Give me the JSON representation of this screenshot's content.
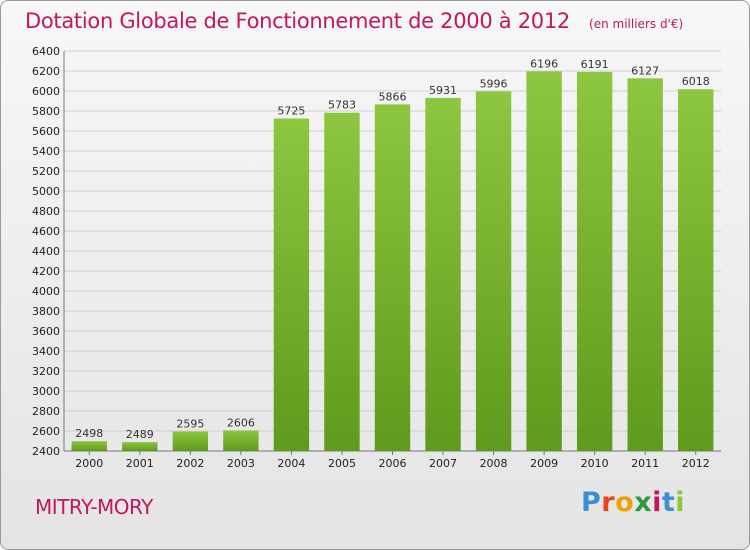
{
  "chart_data": {
    "type": "bar",
    "title": "Dotation Globale de Fonctionnement de 2000 à 2012",
    "subtitle": "(en milliers d'€)",
    "categories": [
      "2000",
      "2001",
      "2002",
      "2003",
      "2004",
      "2005",
      "2006",
      "2007",
      "2008",
      "2009",
      "2010",
      "2011",
      "2012"
    ],
    "values": [
      2498,
      2489,
      2595,
      2606,
      5725,
      5783,
      5866,
      5931,
      5996,
      6196,
      6191,
      6127,
      6018
    ],
    "xlabel": "",
    "ylabel": "",
    "ylim": [
      2400,
      6400
    ],
    "ytick_step": 200,
    "grid": true,
    "bar_color": "#8dc63f",
    "bar_color_dark": "#5e9a1c"
  },
  "commune": "MITRY-MORY",
  "logo": {
    "letters": [
      "P",
      "r",
      "o",
      "x",
      "i",
      "t",
      "i"
    ],
    "colors": [
      "#3a8fd6",
      "#e8431a",
      "#f0a000",
      "#2e9a3a",
      "#c2185b",
      "#3a8fd6",
      "#8dc63f"
    ]
  }
}
